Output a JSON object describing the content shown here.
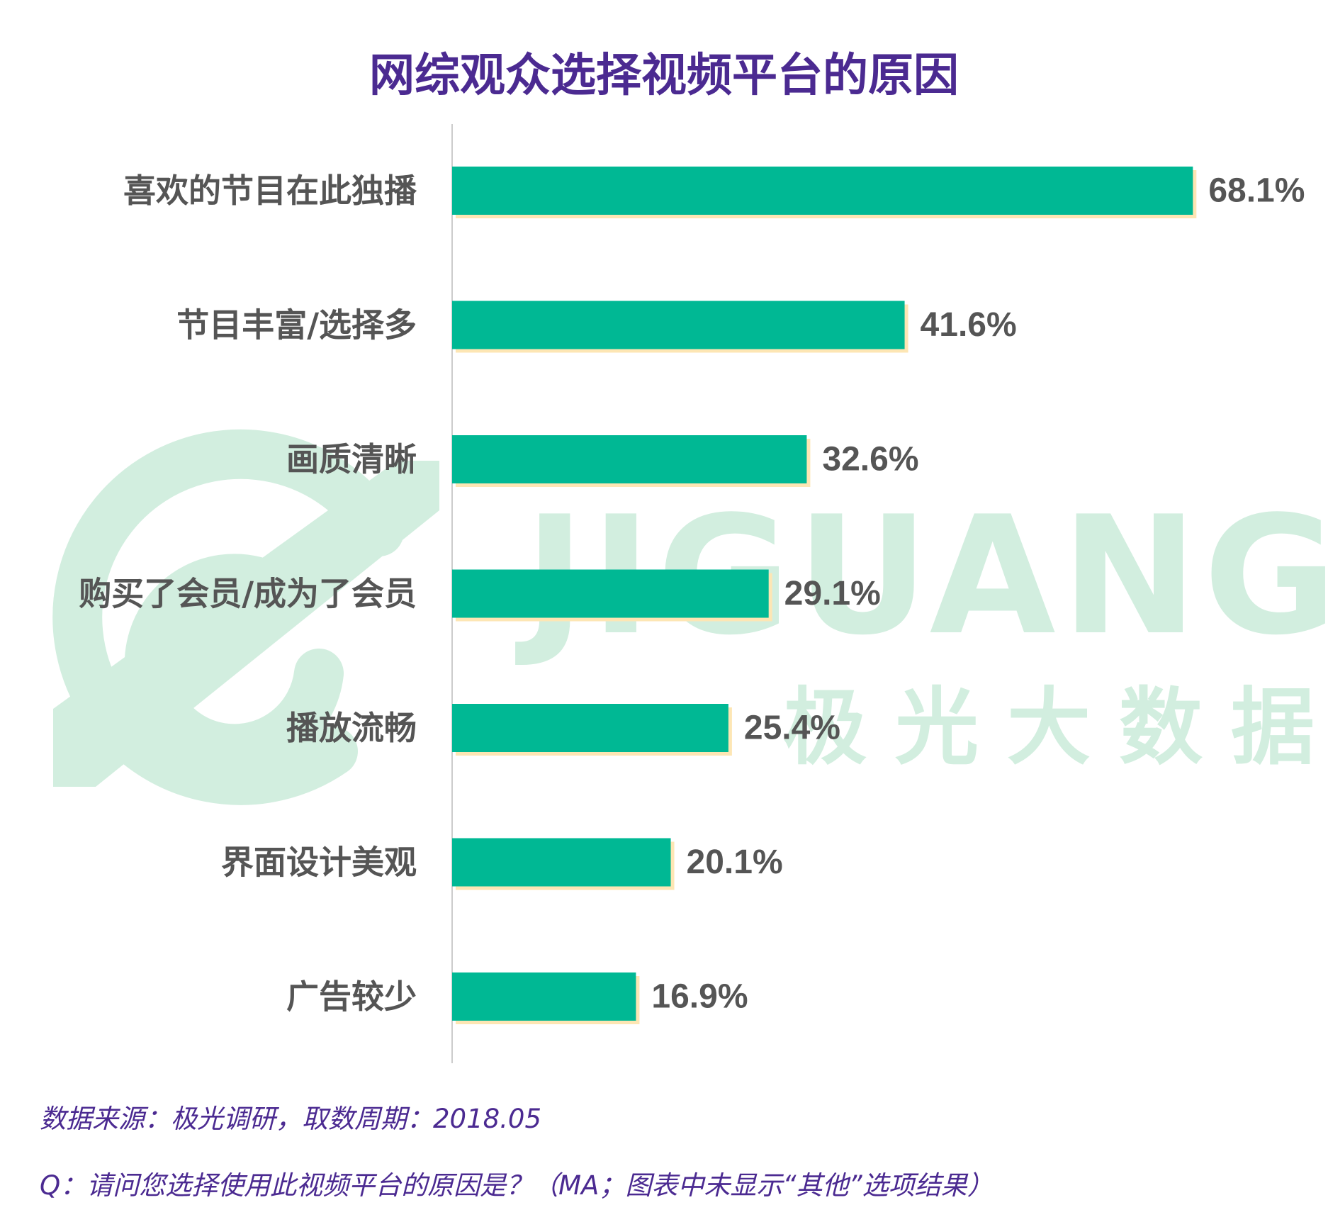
{
  "title": "网综观众选择视频平台的原因",
  "watermark": {
    "brand": "JIGUANG",
    "brand_cn": "极光大数据",
    "color": "#d2eedf"
  },
  "colors": {
    "bar": "#00b894",
    "bar_shadow": "#fde6b4",
    "label": "#555555",
    "title": "#4b2a91",
    "axis": "#cccccc"
  },
  "chart_data": {
    "type": "bar",
    "orientation": "horizontal",
    "title": "网综观众选择视频平台的原因",
    "categories": [
      "喜欢的节目在此独播",
      "节目丰富/选择多",
      "画质清晰",
      "购买了会员/成为了会员",
      "播放流畅",
      "界面设计美观",
      "广告较少"
    ],
    "values": [
      68.1,
      41.6,
      32.6,
      29.1,
      25.4,
      20.1,
      16.9
    ],
    "value_labels": [
      "68.1%",
      "41.6%",
      "32.6%",
      "29.1%",
      "25.4%",
      "20.1%",
      "16.9%"
    ],
    "unit": "%",
    "xlim": [
      0,
      70
    ],
    "grid": false,
    "legend": "none"
  },
  "footer": {
    "source": "数据来源：极光调研，取数周期：2018.05",
    "question": "Q：请问您选择使用此视频平台的原因是？（MA；图表中未显示“其他”选项结果）"
  }
}
